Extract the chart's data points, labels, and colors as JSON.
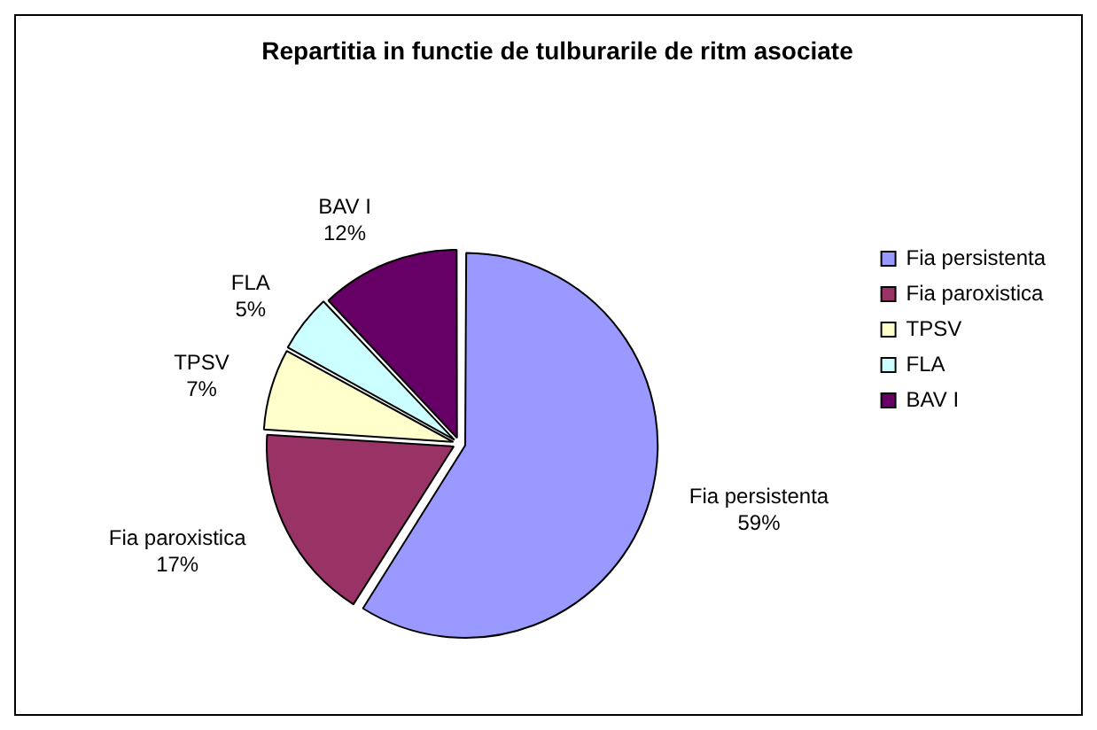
{
  "chart_data": {
    "type": "pie",
    "title": "Repartitia in functie de tulburarile de ritm asociate",
    "categories": [
      "Fia persistenta",
      "Fia paroxistica",
      "TPSV",
      "FLA",
      "BAV I"
    ],
    "values": [
      59,
      17,
      7,
      5,
      12
    ],
    "value_labels": [
      "59%",
      "17%",
      "7%",
      "5%",
      "12%"
    ],
    "colors": [
      "#9999ff",
      "#993366",
      "#ffffcc",
      "#ccffff",
      "#660066"
    ],
    "legend": "right"
  }
}
